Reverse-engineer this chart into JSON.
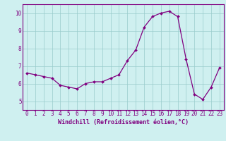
{
  "x": [
    0,
    1,
    2,
    3,
    4,
    5,
    6,
    7,
    8,
    9,
    10,
    11,
    12,
    13,
    14,
    15,
    16,
    17,
    18,
    19,
    20,
    21,
    22,
    23
  ],
  "y": [
    6.6,
    6.5,
    6.4,
    6.3,
    5.9,
    5.8,
    5.7,
    6.0,
    6.1,
    6.1,
    6.3,
    6.5,
    7.3,
    7.9,
    9.2,
    9.8,
    10.0,
    10.1,
    9.8,
    7.4,
    5.4,
    5.1,
    5.8,
    6.9
  ],
  "line_color": "#800080",
  "marker_color": "#800080",
  "bg_color": "#cff0f0",
  "grid_color": "#99cccc",
  "xlabel": "Windchill (Refroidissement éolien,°C)",
  "xlim": [
    -0.5,
    23.5
  ],
  "ylim": [
    4.5,
    10.5
  ],
  "yticks": [
    5,
    6,
    7,
    8,
    9,
    10
  ],
  "xticks": [
    0,
    1,
    2,
    3,
    4,
    5,
    6,
    7,
    8,
    9,
    10,
    11,
    12,
    13,
    14,
    15,
    16,
    17,
    18,
    19,
    20,
    21,
    22,
    23
  ],
  "tick_fontsize": 5.5,
  "label_fontsize": 6.0
}
